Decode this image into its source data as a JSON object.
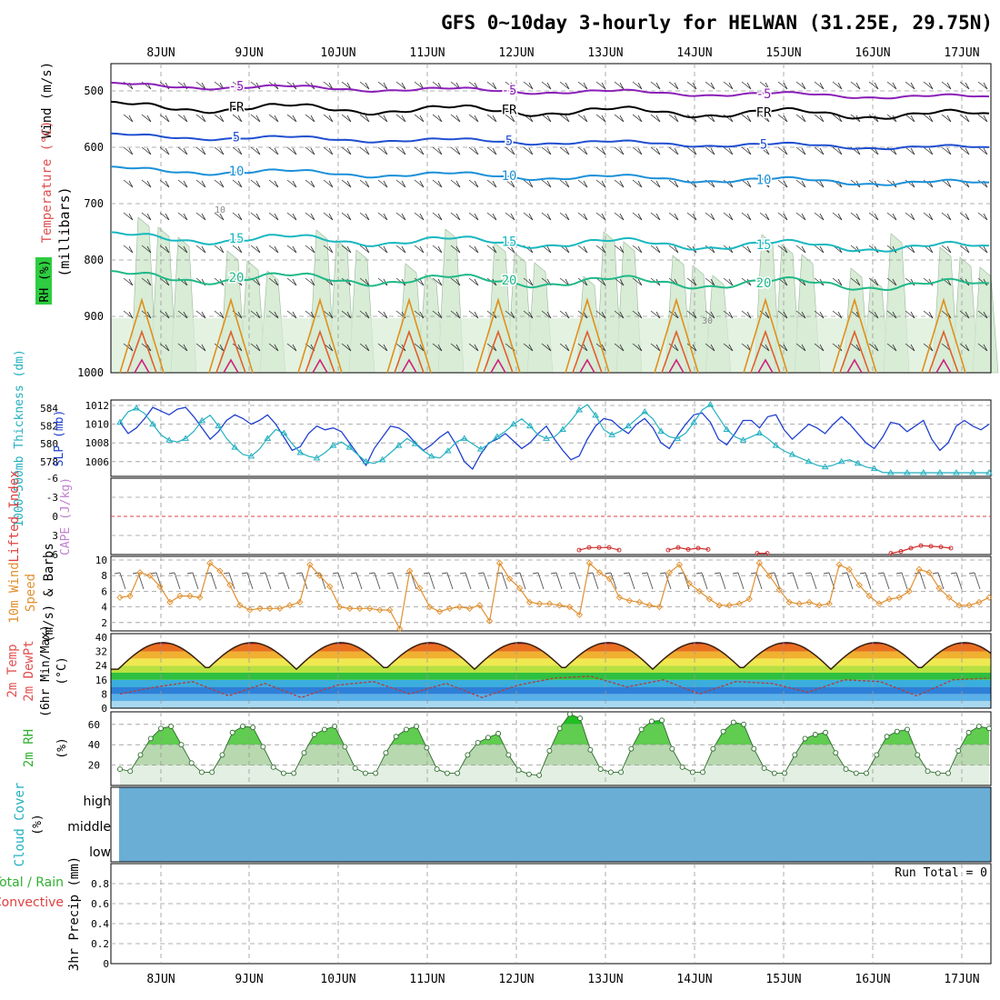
{
  "title": "GFS 0~10day 3-hourly for HELWAN (31.25E, 29.75N)",
  "dates": [
    "8JUN",
    "9JUN",
    "10JUN",
    "11JUN",
    "12JUN",
    "13JUN",
    "14JUN",
    "15JUN",
    "16JUN",
    "17JUN"
  ],
  "chart_data": [
    {
      "type": "area",
      "panel": "upper-air",
      "ylabel": "(millibars)",
      "side_labels": {
        "rh": "RH (%)",
        "temp": "Temperature (°C)",
        "wind": "Wind (m/s)"
      },
      "yticks": [
        500,
        600,
        700,
        800,
        900,
        1000
      ],
      "ylim": [
        1000,
        450
      ],
      "isotherm_labels": [
        "-5",
        "FR",
        "5",
        "10",
        "15",
        "20"
      ],
      "isotherm_levels_mb": {
        "-5": 490,
        "FR": 528,
        "5": 580,
        "10": 640,
        "15": 760,
        "20": 830
      },
      "rh_contour_labels": [
        "10",
        "30"
      ],
      "colors": {
        "minus5": "#8a1fb8",
        "fr": "#000000",
        "c5": "#1f4fd0",
        "c10": "#1b90d8",
        "c15": "#18b8c0",
        "c20": "#20b888",
        "warm1": "#e0901a",
        "warm2": "#e0602a",
        "warm3": "#d0207a",
        "rh_fill": "#d8ecd6"
      }
    },
    {
      "type": "line",
      "panel": "slp-thickness",
      "ylabel_left": "1000~500mb Thickness (dm)",
      "ylabel_right": "SLP (mb)",
      "yticks_left": [
        "584",
        "582",
        "580",
        "578"
      ],
      "yticks_right": [
        "1012",
        "1010",
        "1008",
        "1006"
      ],
      "series": [
        {
          "name": "SLP (mb)",
          "color": "#1f3fd0",
          "values": [
            1010.2,
            1009.0,
            1009.6,
            1010.6,
            1011.8,
            1011.4,
            1011.0,
            1011.6,
            1011.8,
            1010.8,
            1009.6,
            1008.4,
            1009.2,
            1010.4,
            1011.0,
            1010.6,
            1010.0,
            1010.4,
            1011.0,
            1010.0,
            1008.6,
            1007.2,
            1007.6,
            1009.0,
            1009.8,
            1009.4,
            1009.6,
            1009.2,
            1008.0,
            1006.8,
            1005.6,
            1007.4,
            1008.6,
            1009.8,
            1009.6,
            1009.0,
            1008.0,
            1007.2,
            1007.8,
            1008.6,
            1009.2,
            1007.8,
            1006.0,
            1005.2,
            1006.8,
            1008.0,
            1008.4,
            1009.0,
            1008.2,
            1007.4,
            1008.0,
            1009.0,
            1009.8,
            1008.4,
            1007.2,
            1006.2,
            1006.6,
            1008.4,
            1009.8,
            1010.6,
            1010.4,
            1009.6,
            1009.0,
            1010.0,
            1010.6,
            1009.6,
            1008.0,
            1007.4,
            1008.8,
            1010.0,
            1011.0,
            1011.2,
            1010.2,
            1008.4,
            1007.8,
            1009.0,
            1010.4,
            1010.4,
            1009.6,
            1010.8,
            1011.0,
            1009.4,
            1008.4,
            1009.2,
            1010.0,
            1009.6,
            1009.0,
            1010.0,
            1010.8,
            1010.0,
            1009.0,
            1008.0,
            1007.4,
            1008.6,
            1010.2,
            1010.0,
            1009.2,
            1009.8,
            1010.4,
            1008.4,
            1007.2,
            1008.0,
            1009.8,
            1010.4,
            1009.8,
            1009.4,
            1010.0
          ]
        },
        {
          "name": "1000~500mb Thickness (dm)",
          "color": "#22b0c0",
          "values": [
            582.4,
            583.6,
            584.0,
            583.4,
            582.2,
            581.0,
            580.4,
            580.2,
            580.6,
            581.4,
            582.6,
            583.2,
            582.0,
            580.6,
            579.6,
            578.8,
            578.6,
            579.4,
            580.6,
            581.6,
            581.2,
            580.0,
            579.0,
            578.6,
            578.4,
            579.0,
            579.8,
            580.2,
            579.6,
            578.8,
            578.0,
            577.8,
            578.2,
            579.0,
            579.8,
            580.6,
            580.0,
            579.2,
            578.6,
            578.4,
            579.2,
            580.2,
            580.6,
            580.0,
            579.4,
            580.0,
            580.8,
            581.4,
            582.2,
            582.8,
            582.0,
            581.0,
            580.6,
            580.8,
            581.6,
            582.6,
            583.8,
            584.4,
            583.2,
            581.6,
            581.0,
            581.4,
            582.0,
            582.8,
            583.6,
            582.8,
            581.4,
            580.8,
            580.6,
            581.2,
            582.4,
            583.8,
            584.4,
            583.0,
            581.6,
            580.8,
            580.4,
            580.8,
            581.2,
            580.6,
            579.8,
            579.2,
            578.8,
            578.4,
            578.0,
            577.6,
            577.4,
            577.6,
            578.0,
            578.2,
            577.8,
            577.4,
            577.2,
            576.8,
            576.4,
            576.0,
            575.8,
            575.4,
            575.0,
            574.6,
            574.2,
            574.0,
            573.8,
            573.6,
            573.4,
            573.2,
            573.0
          ]
        }
      ]
    },
    {
      "type": "line",
      "panel": "cape-li",
      "ylabel_left": "Lifted Index",
      "ylabel_right": "CAPE (J/kg)",
      "yticks": [
        "-6",
        "-3",
        "0",
        "3",
        "6"
      ],
      "ylim": [
        -6,
        6
      ],
      "series": [
        {
          "name": "Lifted Index",
          "color": "#d03030",
          "segments": [
            {
              "x_start_day": 13.0,
              "values": [
                5.3,
                4.9,
                4.9,
                4.9,
                5.3
              ]
            },
            {
              "x_start_day": 14.0,
              "values": [
                5.3,
                4.9,
                5.2,
                5.0,
                5.2
              ]
            },
            {
              "x_start_day": 15.0,
              "values": [
                5.8,
                5.8
              ]
            },
            {
              "x_start_day": 16.5,
              "values": [
                5.8,
                5.5,
                5.0,
                4.6,
                4.7,
                4.8,
                5.0
              ]
            }
          ]
        }
      ]
    },
    {
      "type": "line",
      "panel": "wind10m",
      "ylabel": "10m Wind Speed (m/s) & Barbs",
      "yticks": [
        "2",
        "4",
        "6",
        "8",
        "10"
      ],
      "ylim": [
        1,
        10.5
      ],
      "series": [
        {
          "name": "10m Wind Speed",
          "color": "#e09030",
          "values": [
            5.2,
            5.4,
            8.4,
            8.0,
            6.6,
            4.6,
            5.4,
            5.4,
            5.2,
            9.6,
            8.6,
            6.8,
            4.2,
            3.6,
            3.8,
            3.8,
            3.8,
            4.2,
            4.6,
            9.4,
            8.0,
            6.6,
            4.0,
            3.8,
            3.8,
            3.8,
            3.6,
            3.6,
            1.2,
            8.6,
            6.4,
            4.0,
            3.4,
            3.8,
            4.0,
            3.8,
            4.2,
            2.2,
            9.6,
            7.6,
            6.4,
            4.6,
            4.4,
            4.4,
            4.2,
            4.0,
            3.0,
            9.6,
            8.4,
            7.6,
            5.2,
            4.8,
            4.6,
            4.2,
            4.0,
            8.4,
            9.4,
            7.0,
            6.0,
            5.0,
            4.2,
            4.2,
            4.4,
            5.0,
            9.6,
            8.0,
            6.2,
            4.6,
            4.4,
            4.6,
            4.2,
            4.4,
            9.4,
            8.8,
            6.8,
            5.4,
            4.4,
            5.0,
            5.2,
            6.0,
            8.8,
            8.4,
            6.4,
            5.2,
            4.2,
            4.2,
            4.6,
            5.2
          ]
        }
      ]
    },
    {
      "type": "area",
      "panel": "temp-dew",
      "ylabel": "2m Temp 2m DewPt (6hr Min/Max) (°C)",
      "yticks": [
        "0",
        "8",
        "16",
        "24",
        "32",
        "40"
      ],
      "ylim": [
        0,
        40
      ],
      "series": [
        {
          "name": "2m Temp daily max",
          "color": "#3a2010",
          "values": [
            37,
            37,
            37,
            37,
            37,
            37,
            37,
            37,
            37,
            37
          ]
        },
        {
          "name": "2m Temp daily min",
          "color": "#3a2010",
          "values": [
            22,
            22,
            22,
            22,
            22,
            22,
            22,
            22,
            22,
            22
          ]
        },
        {
          "name": "2m DewPt",
          "color": "#b04040",
          "values": [
            8,
            12,
            15,
            7,
            14,
            6,
            13,
            15,
            8,
            14,
            6,
            13,
            17,
            18,
            12,
            16,
            8,
            15,
            14,
            9,
            16,
            15,
            7,
            16,
            17
          ]
        }
      ]
    },
    {
      "type": "area",
      "panel": "rh2m",
      "ylabel": "2m RH (%)",
      "yticks": [
        "20",
        "40",
        "60"
      ],
      "ylim": [
        0,
        72
      ],
      "series": [
        {
          "name": "2m RH",
          "color": "#30b030",
          "values": [
            16,
            14,
            30,
            46,
            56,
            58,
            40,
            22,
            13,
            13,
            30,
            52,
            58,
            57,
            38,
            18,
            12,
            12,
            32,
            50,
            55,
            58,
            38,
            17,
            12,
            12,
            32,
            48,
            55,
            58,
            37,
            16,
            12,
            12,
            30,
            42,
            47,
            51,
            30,
            15,
            11,
            10,
            34,
            56,
            70,
            66,
            35,
            16,
            13,
            13,
            36,
            55,
            63,
            64,
            36,
            18,
            13,
            13,
            36,
            53,
            62,
            60,
            36,
            17,
            12,
            12,
            30,
            46,
            50,
            52,
            32,
            16,
            12,
            12,
            30,
            48,
            53,
            55,
            30,
            14,
            12,
            12,
            34,
            52,
            58,
            56
          ]
        }
      ]
    },
    {
      "type": "area",
      "panel": "cloud",
      "ylabel": "Cloud Cover (%)",
      "categories": [
        "high",
        "middle",
        "low"
      ],
      "colors": {
        "fill": "#6aaed6"
      }
    },
    {
      "type": "bar",
      "panel": "precip",
      "ylabel": "3hr Precip (mm)",
      "side_labels": {
        "total": "Total / Rain",
        "conv": "Convective"
      },
      "yticks": [
        "0",
        "0.2",
        "0.4",
        "0.6",
        "0.8"
      ],
      "ylim": [
        0,
        1.0
      ],
      "run_total": "Run Total = 0",
      "values": []
    }
  ]
}
